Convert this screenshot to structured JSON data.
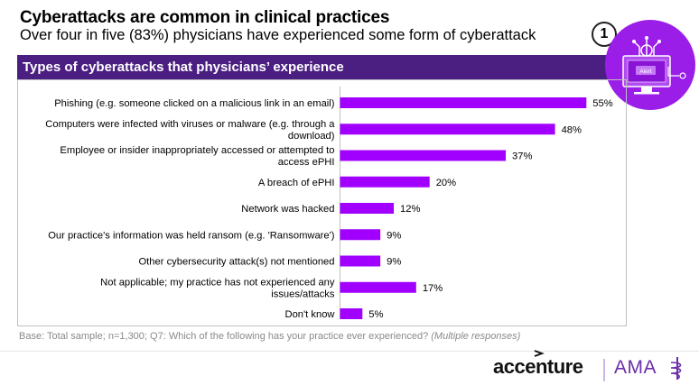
{
  "header": {
    "title": "Cyberattacks are common in clinical practices",
    "subtitle": "Over four in five (83%) physicians have experienced some form of cyberattack",
    "badge": "1"
  },
  "section": {
    "title": "Types of cyberattacks that physicians’ experience"
  },
  "illustration": {
    "label": "Alert",
    "icon": "computer-alert-icon"
  },
  "chart_data": {
    "type": "bar",
    "orientation": "horizontal",
    "categories": [
      [
        "Phishing (e.g. someone clicked on a malicious link in an email)"
      ],
      [
        "Computers were infected with viruses or malware (e.g. through a",
        "download)"
      ],
      [
        "Employee or insider inappropriately accessed or attempted to",
        "access ePHI"
      ],
      [
        "A breach of ePHI"
      ],
      [
        "Network was hacked"
      ],
      [
        "Our practice's information was held ransom (e.g. 'Ransomware')"
      ],
      [
        "Other cybersecurity attack(s) not mentioned"
      ],
      [
        "Not applicable; my practice has not experienced any",
        "issues/attacks"
      ],
      [
        "Don't know"
      ]
    ],
    "values": [
      55,
      48,
      37,
      20,
      12,
      9,
      9,
      17,
      5
    ],
    "value_labels": [
      "55%",
      "48%",
      "37%",
      "20%",
      "12%",
      "9%",
      "9%",
      "17%",
      "5%"
    ],
    "bar_color": "#a100ff",
    "xlim": [
      0,
      100
    ],
    "grid": false
  },
  "footnote": {
    "text": "Base: Total sample; n=1,300; Q7: Which of the following has your practice ever experienced? ",
    "italic": "(Multiple responses)"
  },
  "brand": {
    "accenture": "accenture",
    "ama": "AMA"
  },
  "colors": {
    "section_bg": "#4b1f82",
    "accent": "#a100ff",
    "circle": "#9b1ee8"
  }
}
